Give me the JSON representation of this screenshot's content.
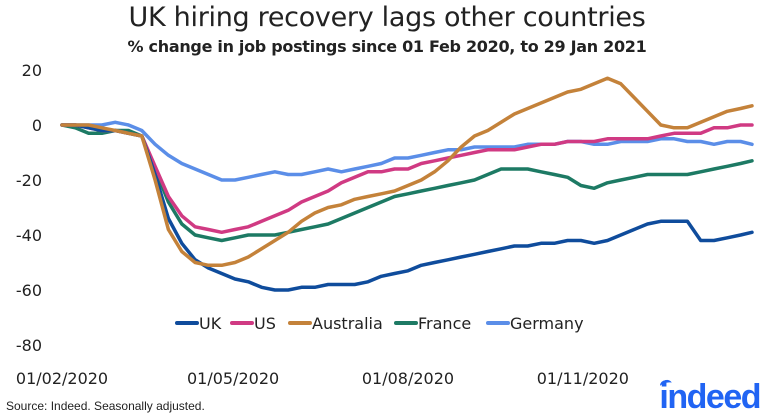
{
  "chart_data": {
    "type": "line",
    "title": "UK hiring recovery lags other countries",
    "subtitle": "% change in job postings since 01 Feb 2020, to 29 Jan 2021",
    "xlabel": "",
    "ylabel": "",
    "ylim": [
      -80,
      20
    ],
    "yticks": [
      20,
      0,
      -20,
      -40,
      -60,
      -80
    ],
    "ytick_labels": [
      "20",
      "0",
      "-20",
      "-40",
      "-60",
      "-80"
    ],
    "xlim_days_since_2020_02_01": [
      0,
      363
    ],
    "xticks_days": [
      0,
      90,
      182,
      274
    ],
    "xtick_labels": [
      "01/02/2020",
      "01/05/2020",
      "01/08/2020",
      "01/11/2020"
    ],
    "grid": false,
    "legend_position": "bottom-center-inside",
    "x_days": [
      0,
      7,
      14,
      21,
      28,
      35,
      42,
      49,
      56,
      63,
      70,
      77,
      84,
      91,
      98,
      105,
      112,
      119,
      126,
      133,
      140,
      147,
      154,
      161,
      168,
      175,
      182,
      189,
      196,
      203,
      210,
      217,
      224,
      231,
      238,
      245,
      252,
      259,
      266,
      273,
      280,
      287,
      294,
      301,
      308,
      315,
      322,
      329,
      336,
      343,
      350,
      357,
      363
    ],
    "series": [
      {
        "name": "UK",
        "color": "#0f4c9c",
        "values": [
          0,
          0,
          -1,
          -2,
          -2,
          -3,
          -4,
          -18,
          -34,
          -43,
          -49,
          -52,
          -54,
          -56,
          -57,
          -59,
          -60,
          -60,
          -59,
          -59,
          -58,
          -58,
          -58,
          -57,
          -55,
          -54,
          -53,
          -51,
          -50,
          -49,
          -48,
          -47,
          -46,
          -45,
          -44,
          -44,
          -43,
          -43,
          -42,
          -42,
          -43,
          -42,
          -40,
          -38,
          -36,
          -35,
          -35,
          -35,
          -42,
          -42,
          -41,
          -40,
          -39
        ]
      },
      {
        "name": "US",
        "color": "#d03a83",
        "values": [
          0,
          0,
          -1,
          -2,
          -2,
          -3,
          -4,
          -15,
          -26,
          -33,
          -37,
          -38,
          -39,
          -38,
          -37,
          -35,
          -33,
          -31,
          -28,
          -26,
          -24,
          -21,
          -19,
          -17,
          -17,
          -16,
          -16,
          -14,
          -13,
          -12,
          -11,
          -10,
          -9,
          -9,
          -9,
          -8,
          -7,
          -7,
          -6,
          -6,
          -6,
          -5,
          -5,
          -5,
          -5,
          -4,
          -3,
          -3,
          -3,
          -1,
          -1,
          0,
          0
        ]
      },
      {
        "name": "Australia",
        "color": "#c4823a",
        "values": [
          0,
          0,
          0,
          -1,
          -2,
          -3,
          -4,
          -20,
          -38,
          -46,
          -50,
          -51,
          -51,
          -50,
          -48,
          -45,
          -42,
          -39,
          -35,
          -32,
          -30,
          -29,
          -27,
          -26,
          -25,
          -24,
          -22,
          -20,
          -17,
          -13,
          -8,
          -4,
          -2,
          1,
          4,
          6,
          8,
          10,
          12,
          13,
          15,
          17,
          15,
          10,
          5,
          0,
          -1,
          -1,
          1,
          3,
          5,
          6,
          7
        ]
      },
      {
        "name": "France",
        "color": "#1d7a64",
        "values": [
          0,
          -1,
          -3,
          -3,
          -2,
          -2,
          -4,
          -16,
          -28,
          -36,
          -40,
          -41,
          -42,
          -41,
          -40,
          -40,
          -40,
          -39,
          -38,
          -37,
          -36,
          -34,
          -32,
          -30,
          -28,
          -26,
          -25,
          -24,
          -23,
          -22,
          -21,
          -20,
          -18,
          -16,
          -16,
          -16,
          -17,
          -18,
          -19,
          -22,
          -23,
          -21,
          -20,
          -19,
          -18,
          -18,
          -18,
          -18,
          -17,
          -16,
          -15,
          -14,
          -13
        ]
      },
      {
        "name": "Germany",
        "color": "#5b8ee8",
        "values": [
          0,
          0,
          0,
          0,
          1,
          0,
          -2,
          -7,
          -11,
          -14,
          -16,
          -18,
          -20,
          -20,
          -19,
          -18,
          -17,
          -18,
          -18,
          -17,
          -16,
          -17,
          -16,
          -15,
          -14,
          -12,
          -12,
          -11,
          -10,
          -9,
          -9,
          -8,
          -8,
          -8,
          -8,
          -7,
          -7,
          -7,
          -6,
          -6,
          -7,
          -7,
          -6,
          -6,
          -6,
          -5,
          -5,
          -6,
          -6,
          -7,
          -6,
          -6,
          -7
        ]
      }
    ]
  },
  "footer": {
    "source": "Source: Indeed. Seasonally adjusted.",
    "logo_text": "indeed"
  }
}
